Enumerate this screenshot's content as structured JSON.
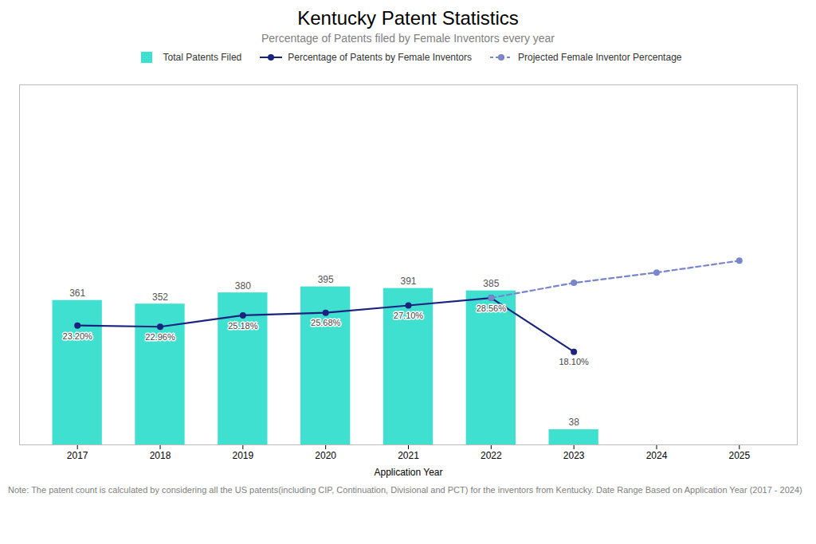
{
  "chart_data": {
    "type": "bar",
    "title": "Kentucky Patent Statistics",
    "subtitle": "Percentage of Patents filed by Female Inventors every year",
    "note": "Note: The patent count is calculated by considering all the US patents(including CIP, Continuation, Divisional and PCT) for the inventors from Kentucky. Date Range Based on Application Year (2017 - 2024)",
    "xlabel": "Application Year",
    "xlim": [
      2016.3,
      2025.7
    ],
    "xticks": [
      2017,
      2018,
      2019,
      2020,
      2021,
      2022,
      2023,
      2024,
      2025
    ],
    "ylim": [
      0,
      900
    ],
    "yticks": [],
    "y2lim": [
      0,
      70
    ],
    "y2ticks": [],
    "tick_labels": "x",
    "grid": false,
    "legend": "top",
    "series": [
      {
        "name": "Total Patents Filed",
        "type": "bar",
        "color": "#40E0D0",
        "x": [
          2017,
          2018,
          2019,
          2020,
          2021,
          2022,
          2023
        ],
        "values": [
          361,
          352,
          380,
          395,
          391,
          385,
          38
        ],
        "data_labels": true
      },
      {
        "name": "Percentage of Patents by Female Inventors",
        "type": "line",
        "axis": "y2",
        "color": "#1a237e",
        "marker": "circle",
        "line_style": "solid",
        "x": [
          2017,
          2018,
          2019,
          2020,
          2021,
          2022,
          2023
        ],
        "values": [
          23.2,
          22.96,
          25.18,
          25.68,
          27.1,
          28.56,
          18.1
        ],
        "value_labels": [
          "23.20%",
          "22.96%",
          "25.18%",
          "25.68%",
          "27.10%",
          "28.56%",
          "18.10%"
        ],
        "data_labels": true
      },
      {
        "name": "Projected Female Inventor Percentage",
        "type": "line",
        "axis": "y2",
        "color": "#7986cb",
        "marker": "circle",
        "line_style": "dashed",
        "x": [
          2022,
          2023,
          2024,
          2025
        ],
        "values": [
          28.56,
          31.5,
          33.5,
          35.8
        ]
      }
    ]
  }
}
